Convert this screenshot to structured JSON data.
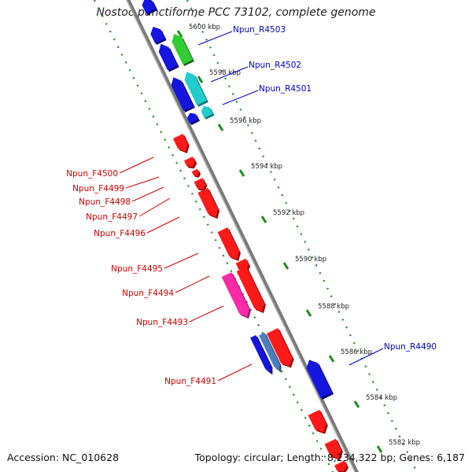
{
  "title": "Nostoc punctiforme PCC 73102, complete genome",
  "footer": {
    "accession": "Accession: NC_010628",
    "topology": "Topology: circular; Length: 8,234,322 bp; Genes: 6,187"
  },
  "colors": {
    "backbone": "#8c8c8c",
    "scale_dots": "#1f8a1f",
    "forward_label": "#cc0000",
    "reverse_label": "#0000bb",
    "gene_red": "#ff1a1a",
    "gene_blue": "#1515e0",
    "gene_green": "#33cc33",
    "gene_cyan": "#22cccc",
    "gene_pink": "#ff2aa8",
    "gene_steel": "#4a7fbf"
  },
  "scale_marks": [
    {
      "label": "5600 kbp"
    },
    {
      "label": "5598 kbp"
    },
    {
      "label": "5596 kbp"
    },
    {
      "label": "5594 kbp"
    },
    {
      "label": "5592 kbp"
    },
    {
      "label": "5590 kbp"
    },
    {
      "label": "5588 kbp"
    },
    {
      "label": "5586 kbp"
    },
    {
      "label": "5584 kbp"
    },
    {
      "label": "5582 kbp"
    }
  ],
  "reverse_gene_labels": [
    {
      "label": "Npun_R4503"
    },
    {
      "label": "Npun_R4502"
    },
    {
      "label": "Npun_R4501"
    },
    {
      "label": "Npun_R4490"
    }
  ],
  "forward_gene_labels": [
    {
      "label": "Npun_F4500"
    },
    {
      "label": "Npun_F4499"
    },
    {
      "label": "Npun_F4498"
    },
    {
      "label": "Npun_F4497"
    },
    {
      "label": "Npun_F4496"
    },
    {
      "label": "Npun_F4495"
    },
    {
      "label": "Npun_F4494"
    },
    {
      "label": "Npun_F4493"
    },
    {
      "label": "Npun_F4491"
    }
  ]
}
